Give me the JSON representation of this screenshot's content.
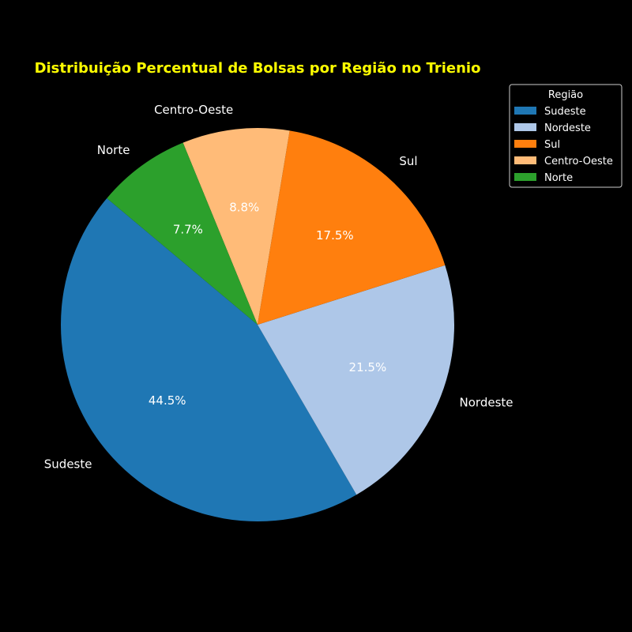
{
  "chart_data": {
    "type": "pie",
    "title": "Distribuição Percentual de Bolsas por Região no Trienio",
    "categories": [
      "Sudeste",
      "Nordeste",
      "Sul",
      "Centro-Oeste",
      "Norte"
    ],
    "values": [
      44.5,
      21.5,
      17.5,
      8.8,
      7.7
    ],
    "value_labels": [
      "44.5%",
      "21.5%",
      "17.5%",
      "8.8%",
      "7.7%"
    ],
    "colors": [
      "#1f77b4",
      "#aec7e8",
      "#ff7f0e",
      "#ffbb78",
      "#2ca02c"
    ],
    "legend": {
      "title": "Região",
      "placement": "top-right",
      "entries": [
        "Sudeste",
        "Nordeste",
        "Sul",
        "Centro-Oeste",
        "Norte"
      ]
    },
    "text_color": "#ffffff",
    "title_color": "#ffff00",
    "background": "#000000"
  }
}
